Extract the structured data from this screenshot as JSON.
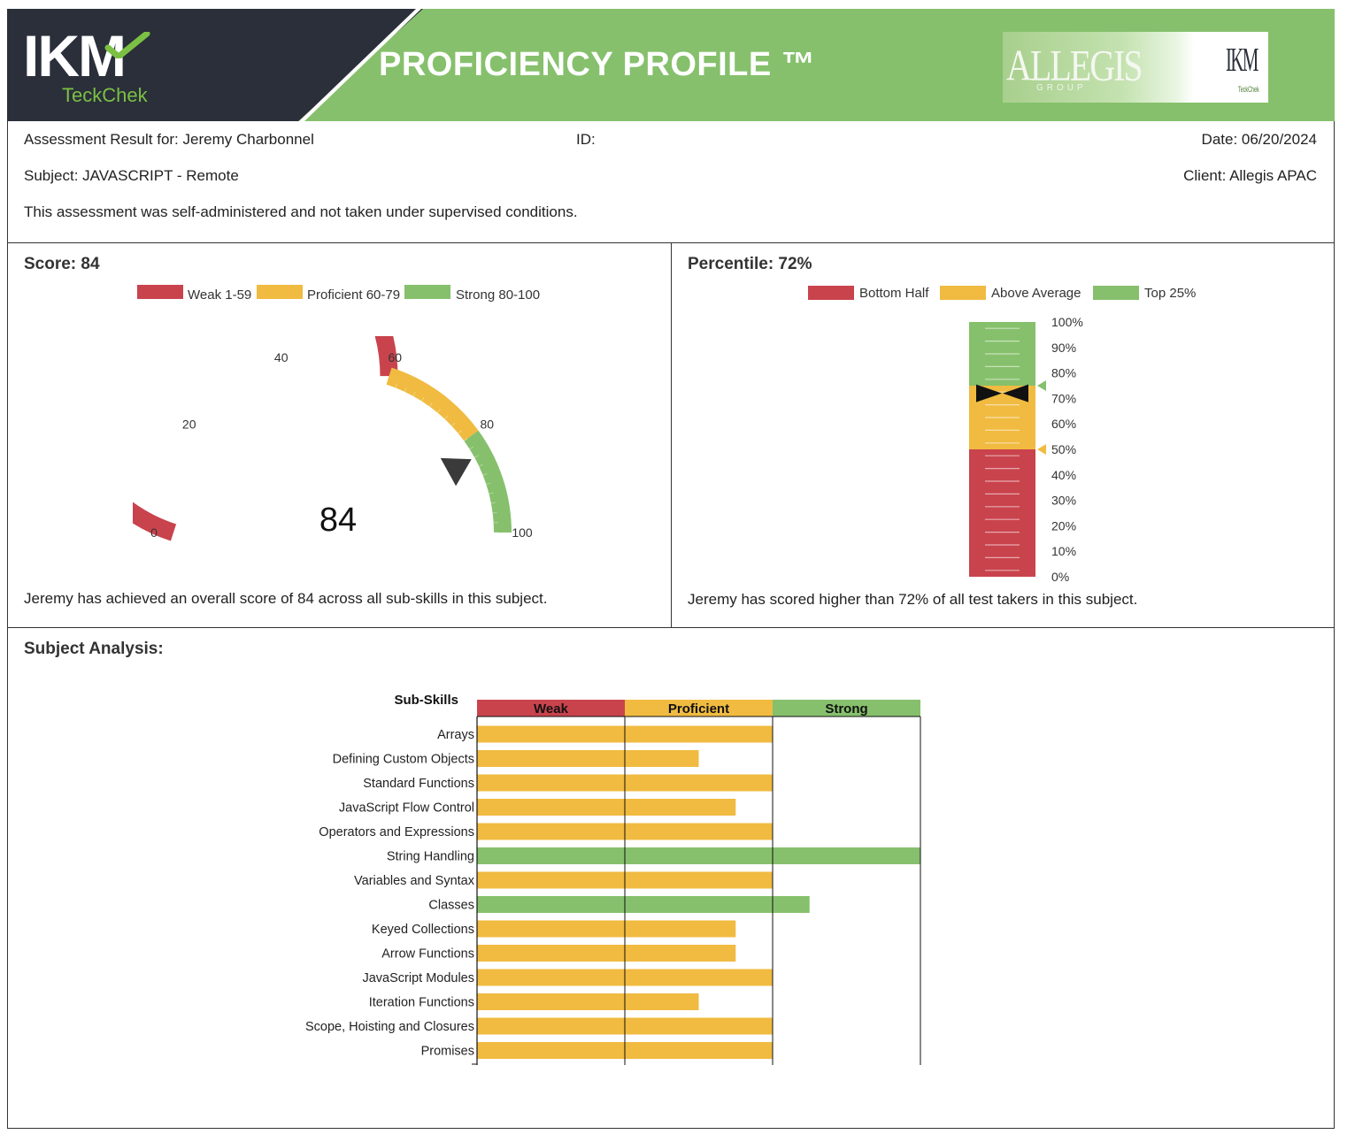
{
  "header": {
    "logo_text": "IKM",
    "logo_sub": "TeckChek",
    "title": "PROFICIENCY PROFILE ™",
    "partner_logo_text": "ALLEGIS",
    "partner_logo_sub": "GROUP",
    "partner_logo2_text": "IKM",
    "partner_logo2_sub": "TeckChek"
  },
  "info": {
    "result_for": "Assessment Result for: Jeremy Charbonnel",
    "id_label": "ID:",
    "date": "Date: 06/20/2024",
    "subject": "Subject: JAVASCRIPT - Remote",
    "client": "Client: Allegis APAC",
    "note": "This assessment was self-administered and not taken under supervised conditions."
  },
  "score_panel": {
    "title": "Score: 84",
    "legend": [
      "Weak 1-59",
      "Proficient 60-79",
      "Strong 80-100"
    ],
    "value_text": "84",
    "sentence": "Jeremy has achieved an overall score of 84 across all sub-skills in this subject."
  },
  "percentile_panel": {
    "title": "Percentile: 72%",
    "legend": [
      "Bottom Half",
      "Above Average",
      "Top 25%"
    ],
    "sentence": "Jeremy has scored higher than 72% of all test takers in this subject."
  },
  "analysis": {
    "title": "Subject Analysis:"
  },
  "colors": {
    "weak": "#c9434d",
    "proficient": "#f0bb40",
    "strong": "#86c06c",
    "dark": "#2a2f3a"
  },
  "chart_data": [
    {
      "type": "gauge",
      "value": 84,
      "range": [
        0,
        100
      ],
      "ticks": [
        "0",
        "20",
        "40",
        "60",
        "80",
        "100"
      ],
      "bands": [
        {
          "name": "Weak 1-59",
          "from": 0,
          "to": 60,
          "color": "#c9434d"
        },
        {
          "name": "Proficient 60-79",
          "from": 60,
          "to": 80,
          "color": "#f0bb40"
        },
        {
          "name": "Strong 80-100",
          "from": 80,
          "to": 100,
          "color": "#86c06c"
        }
      ]
    },
    {
      "type": "bar",
      "orientation": "vertical-thermometer",
      "value": 72,
      "range": [
        0,
        100
      ],
      "ticks": [
        "0%",
        "10%",
        "20%",
        "30%",
        "40%",
        "50%",
        "60%",
        "70%",
        "80%",
        "90%",
        "100%"
      ],
      "bands": [
        {
          "name": "Bottom Half",
          "from": 0,
          "to": 50,
          "color": "#c9434d"
        },
        {
          "name": "Above Average",
          "from": 50,
          "to": 75,
          "color": "#f0bb40"
        },
        {
          "name": "Top 25%",
          "from": 75,
          "to": 100,
          "color": "#86c06c"
        }
      ],
      "markers": [
        75,
        50
      ]
    },
    {
      "type": "bar",
      "orientation": "horizontal",
      "title": "Sub-Skills",
      "columns": [
        "Weak",
        "Proficient",
        "Strong"
      ],
      "categories": [
        "Arrays",
        "Defining Custom Objects",
        "Standard Functions",
        "JavaScript Flow Control",
        "Operators and Expressions",
        "String Handling",
        "Variables and Syntax",
        "Classes",
        "Keyed Collections",
        "Arrow Functions",
        "JavaScript Modules",
        "Iteration Functions",
        "Scope, Hoisting and Closures",
        "Promises"
      ],
      "values": [
        2.0,
        1.5,
        2.0,
        1.75,
        2.0,
        3.0,
        2.0,
        2.25,
        1.75,
        1.75,
        2.0,
        1.5,
        2.0,
        2.0
      ],
      "levels": [
        "proficient",
        "proficient",
        "proficient",
        "proficient",
        "proficient",
        "strong",
        "proficient",
        "strong",
        "proficient",
        "proficient",
        "proficient",
        "proficient",
        "proficient",
        "proficient"
      ],
      "xlim": [
        0,
        3
      ]
    }
  ]
}
